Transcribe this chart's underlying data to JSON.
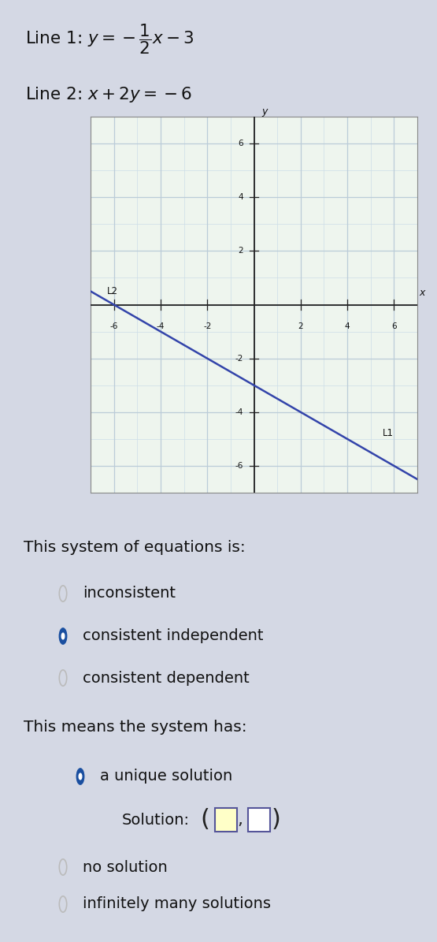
{
  "line1_slope": -0.5,
  "line1_intercept": -3,
  "line_color": "#3344aa",
  "grid_color_minor": "#ccdde8",
  "grid_color_major": "#bbccd8",
  "graph_bg": "#eef5ee",
  "axis_range": [
    -7,
    7
  ],
  "tick_values": [
    -6,
    -4,
    -2,
    2,
    4,
    6
  ],
  "options1": [
    "inconsistent",
    "consistent independent",
    "consistent dependent"
  ],
  "selected1": 1,
  "options2_top": [
    "a unique solution"
  ],
  "selected2": 0,
  "options2_bottom": [
    "no solution",
    "infinitely many solutions"
  ],
  "radio_filled": "#1a4fa0",
  "radio_empty_edge": "#bbbbbb",
  "bg_color": "#d4d8e4",
  "text_color": "#111111"
}
